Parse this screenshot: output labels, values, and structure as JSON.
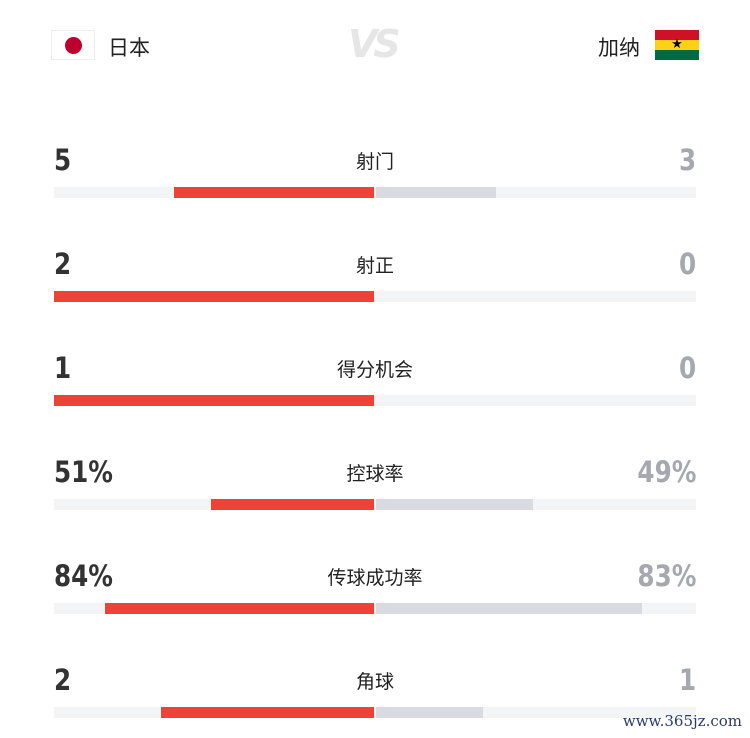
{
  "home": {
    "name": "日本",
    "flag": "japan-flag"
  },
  "away": {
    "name": "加纳",
    "flag": "ghana-flag"
  },
  "vs": "VS",
  "colors": {
    "home_bar": "#ef4135",
    "away_bar": "#d9dbe0"
  },
  "stats": [
    {
      "label": "射门",
      "home": "5",
      "away": "3",
      "home_frac": 0.625,
      "away_frac": 0.375
    },
    {
      "label": "射正",
      "home": "2",
      "away": "0",
      "home_frac": 1,
      "away_frac": 0
    },
    {
      "label": "得分机会",
      "home": "1",
      "away": "0",
      "home_frac": 1,
      "away_frac": 0
    },
    {
      "label": "控球率",
      "home": "51%",
      "away": "49%",
      "home_frac": 0.51,
      "away_frac": 0.49
    },
    {
      "label": "传球成功率",
      "home": "84%",
      "away": "83%",
      "home_frac": 0.84,
      "away_frac": 0.83
    },
    {
      "label": "角球",
      "home": "2",
      "away": "1",
      "home_frac": 0.667,
      "away_frac": 0.333
    }
  ],
  "watermark": "www.365jz.com"
}
